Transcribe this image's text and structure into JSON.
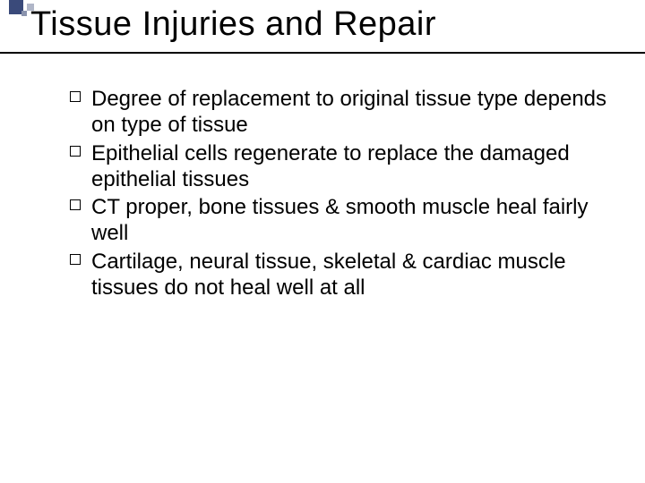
{
  "title": "Tissue Injuries and Repair",
  "bullets": [
    "Degree of replacement to original tissue type depends on type of tissue",
    "Epithelial cells regenerate to replace the damaged epithelial tissues",
    "CT proper, bone tissues & smooth muscle heal fairly well",
    "Cartilage, neural tissue, skeletal & cardiac muscle tissues do not heal well at all"
  ],
  "style": {
    "background_color": "#ffffff",
    "text_color": "#000000",
    "accent_color": "#3a4a7a",
    "title_fontsize": 38,
    "body_fontsize": 24,
    "font_family": "Arial",
    "bullet_shape": "hollow-square",
    "rule_color": "#000000",
    "slide_width": 720,
    "slide_height": 540
  }
}
